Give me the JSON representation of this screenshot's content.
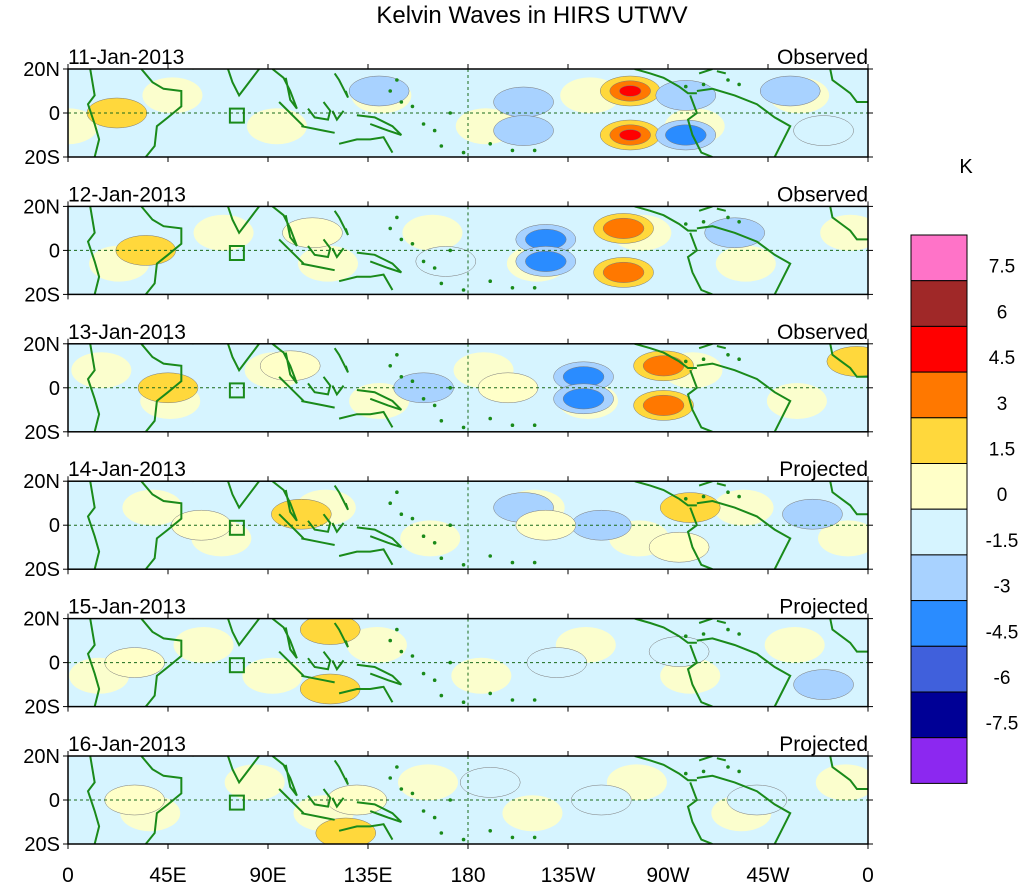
{
  "chart_data": {
    "type": "heatmap",
    "title": "Kelvin Waves in HIRS UTWV",
    "colorbar": {
      "unit": "K",
      "levels": [
        "7.5",
        "6",
        "4.5",
        "3",
        "1.5",
        "0",
        "-1.5",
        "-3",
        "-4.5",
        "-6",
        "-7.5"
      ],
      "colors": [
        "#ff73c8",
        "#a02828",
        "#ff0000",
        "#ff7800",
        "#ffd83c",
        "#ffffc8",
        "#d6f4ff",
        "#a8d2ff",
        "#2a8cff",
        "#4060dc",
        "#000096",
        "#8c28f0"
      ]
    },
    "x_tick_labels": [
      "0",
      "45E",
      "90E",
      "135E",
      "180",
      "135W",
      "90W",
      "45W",
      "0"
    ],
    "x_ticks_deg": [
      0,
      45,
      90,
      135,
      180,
      225,
      270,
      315,
      360
    ],
    "y_tick_labels": [
      "20N",
      "0",
      "20S"
    ],
    "y_ticks_deg": [
      20,
      0,
      -20
    ],
    "xlim": [
      0,
      360
    ],
    "ylim": [
      -20,
      20
    ],
    "panels": [
      {
        "date": "11-Jan-2013",
        "status": "Observed",
        "anomalies": [
          {
            "lon": 253,
            "lat": 10,
            "value": 4.6
          },
          {
            "lon": 253,
            "lat": -10,
            "value": 4.6
          },
          {
            "lon": 205,
            "lat": 5,
            "value": -2.2
          },
          {
            "lon": 205,
            "lat": -8,
            "value": -2.0
          },
          {
            "lon": 278,
            "lat": -10,
            "value": -3.2
          },
          {
            "lon": 278,
            "lat": 8,
            "value": -2.0
          },
          {
            "lon": 22,
            "lat": 0,
            "value": 1.6
          },
          {
            "lon": 325,
            "lat": 10,
            "value": -1.8
          },
          {
            "lon": 340,
            "lat": -8,
            "value": -1.5
          },
          {
            "lon": 140,
            "lat": 10,
            "value": -1.6
          }
        ]
      },
      {
        "date": "12-Jan-2013",
        "status": "Observed",
        "anomalies": [
          {
            "lon": 250,
            "lat": 10,
            "value": 3.4
          },
          {
            "lon": 250,
            "lat": -10,
            "value": 3.4
          },
          {
            "lon": 215,
            "lat": 5,
            "value": -3.2
          },
          {
            "lon": 215,
            "lat": -5,
            "value": -3.2
          },
          {
            "lon": 35,
            "lat": 0,
            "value": 1.6
          },
          {
            "lon": 110,
            "lat": 8,
            "value": 1.2
          },
          {
            "lon": 300,
            "lat": 8,
            "value": -1.6
          },
          {
            "lon": 170,
            "lat": -5,
            "value": -1.4
          }
        ]
      },
      {
        "date": "13-Jan-2013",
        "status": "Observed",
        "anomalies": [
          {
            "lon": 232,
            "lat": 5,
            "value": -3.2
          },
          {
            "lon": 232,
            "lat": -5,
            "value": -3.2
          },
          {
            "lon": 268,
            "lat": 10,
            "value": 3.2
          },
          {
            "lon": 268,
            "lat": -8,
            "value": 3.2
          },
          {
            "lon": 45,
            "lat": 0,
            "value": 1.5
          },
          {
            "lon": 100,
            "lat": 10,
            "value": 1.4
          },
          {
            "lon": 198,
            "lat": 0,
            "value": 1.2
          },
          {
            "lon": 160,
            "lat": 0,
            "value": -1.6
          },
          {
            "lon": 355,
            "lat": 12,
            "value": 1.5
          }
        ]
      },
      {
        "date": "14-Jan-2013",
        "status": "Projected",
        "anomalies": [
          {
            "lon": 240,
            "lat": 0,
            "value": -1.8
          },
          {
            "lon": 205,
            "lat": 8,
            "value": -1.6
          },
          {
            "lon": 215,
            "lat": 0,
            "value": 1.2
          },
          {
            "lon": 280,
            "lat": 8,
            "value": 1.6
          },
          {
            "lon": 275,
            "lat": -10,
            "value": 1.4
          },
          {
            "lon": 335,
            "lat": 5,
            "value": -2.0
          },
          {
            "lon": 105,
            "lat": 5,
            "value": 1.6
          },
          {
            "lon": 60,
            "lat": 0,
            "value": 1.2
          }
        ]
      },
      {
        "date": "15-Jan-2013",
        "status": "Projected",
        "anomalies": [
          {
            "lon": 118,
            "lat": 15,
            "value": 1.6
          },
          {
            "lon": 118,
            "lat": -12,
            "value": 1.6
          },
          {
            "lon": 220,
            "lat": 0,
            "value": -1.2
          },
          {
            "lon": 275,
            "lat": 5,
            "value": -1.2
          },
          {
            "lon": 340,
            "lat": -10,
            "value": -1.6
          },
          {
            "lon": 30,
            "lat": 0,
            "value": 0.8
          }
        ]
      },
      {
        "date": "16-Jan-2013",
        "status": "Projected",
        "anomalies": [
          {
            "lon": 130,
            "lat": 0,
            "value": 1.0
          },
          {
            "lon": 125,
            "lat": -15,
            "value": 1.6
          },
          {
            "lon": 240,
            "lat": 0,
            "value": -1.0
          },
          {
            "lon": 310,
            "lat": 0,
            "value": -0.9
          },
          {
            "lon": 30,
            "lat": 0,
            "value": 0.7
          },
          {
            "lon": 190,
            "lat": 8,
            "value": -0.8
          }
        ]
      }
    ]
  }
}
